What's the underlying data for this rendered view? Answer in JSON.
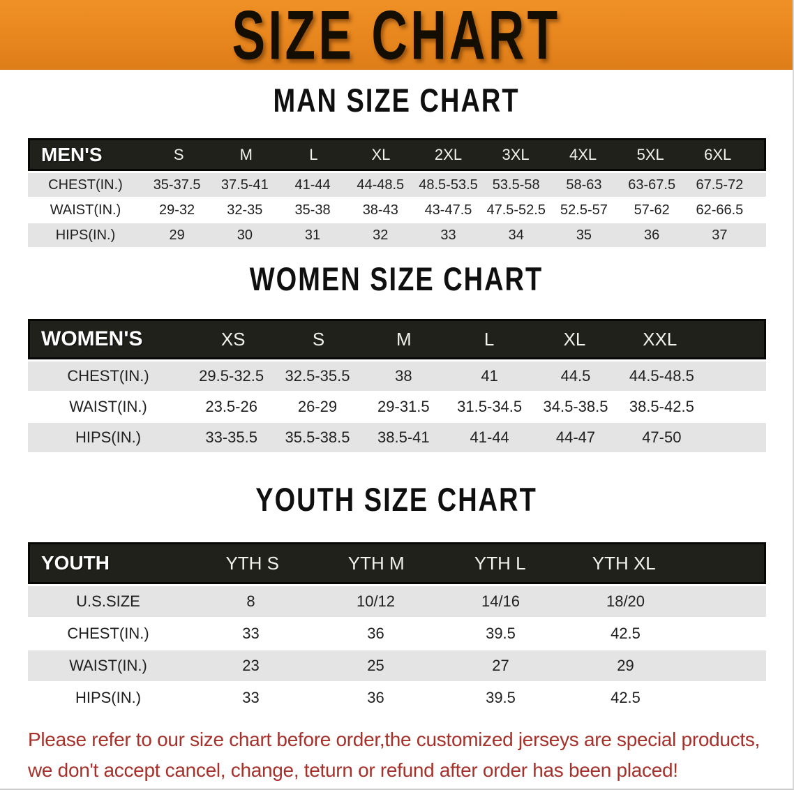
{
  "banner": {
    "title": "SIZE CHART",
    "background_color": "#E8861E",
    "text_color": "#140D02"
  },
  "tables": [
    {
      "id": "men",
      "title": "MAN SIZE CHART",
      "corner": "MEN'S",
      "sizes": [
        "S",
        "M",
        "L",
        "XL",
        "2XL",
        "3XL",
        "4XL",
        "5XL",
        "6XL"
      ],
      "rows": [
        {
          "label": "CHEST(IN.)",
          "values": [
            "35-37.5",
            "37.5-41",
            "41-44",
            "44-48.5",
            "48.5-53.5",
            "53.5-58",
            "58-63",
            "63-67.5",
            "67.5-72"
          ]
        },
        {
          "label": "WAIST(IN.)",
          "values": [
            "29-32",
            "32-35",
            "35-38",
            "38-43",
            "43-47.5",
            "47.5-52.5",
            "52.5-57",
            "57-62",
            "62-66.5"
          ]
        },
        {
          "label": "HIPS(IN.)",
          "values": [
            "29",
            "30",
            "31",
            "32",
            "33",
            "34",
            "35",
            "36",
            "37"
          ]
        }
      ]
    },
    {
      "id": "women",
      "title": "WOMEN SIZE CHART",
      "corner": "WOMEN'S",
      "sizes": [
        "XS",
        "S",
        "M",
        "L",
        "XL",
        "XXL"
      ],
      "rows": [
        {
          "label": "CHEST(IN.)",
          "values": [
            "29.5-32.5",
            "32.5-35.5",
            "38",
            "41",
            "44.5",
            "44.5-48.5"
          ]
        },
        {
          "label": "WAIST(IN.)",
          "values": [
            "23.5-26",
            "26-29",
            "29-31.5",
            "31.5-34.5",
            "34.5-38.5",
            "38.5-42.5"
          ]
        },
        {
          "label": "HIPS(IN.)",
          "values": [
            "33-35.5",
            "35.5-38.5",
            "38.5-41",
            "41-44",
            "44-47",
            "47-50"
          ]
        }
      ]
    },
    {
      "id": "youth",
      "title": "YOUTH SIZE CHART",
      "corner": "YOUTH",
      "sizes": [
        "YTH S",
        "YTH M",
        "YTH L",
        "YTH XL"
      ],
      "rows": [
        {
          "label": "U.S.SIZE",
          "values": [
            "8",
            "10/12",
            "14/16",
            "18/20"
          ]
        },
        {
          "label": "CHEST(IN.)",
          "values": [
            "33",
            "36",
            "39.5",
            "42.5"
          ]
        },
        {
          "label": "WAIST(IN.)",
          "values": [
            "23",
            "25",
            "27",
            "29"
          ]
        },
        {
          "label": "HIPS(IN.)",
          "values": [
            "33",
            "36",
            "39.5",
            "42.5"
          ]
        }
      ]
    }
  ],
  "disclaimer": {
    "line1": "Please refer to our size chart before order,the customized jerseys are special products,",
    "line2": "we don't accept cancel, change, teturn or refund after order has been placed!",
    "text_color": "#A6312B"
  },
  "colors": {
    "banner_orange": "#E8861E",
    "header_bar_black": "#21211B",
    "row_gray": "#E4E4E4",
    "row_white": "#FFFFFF",
    "disclaimer_red": "#A6312B"
  }
}
